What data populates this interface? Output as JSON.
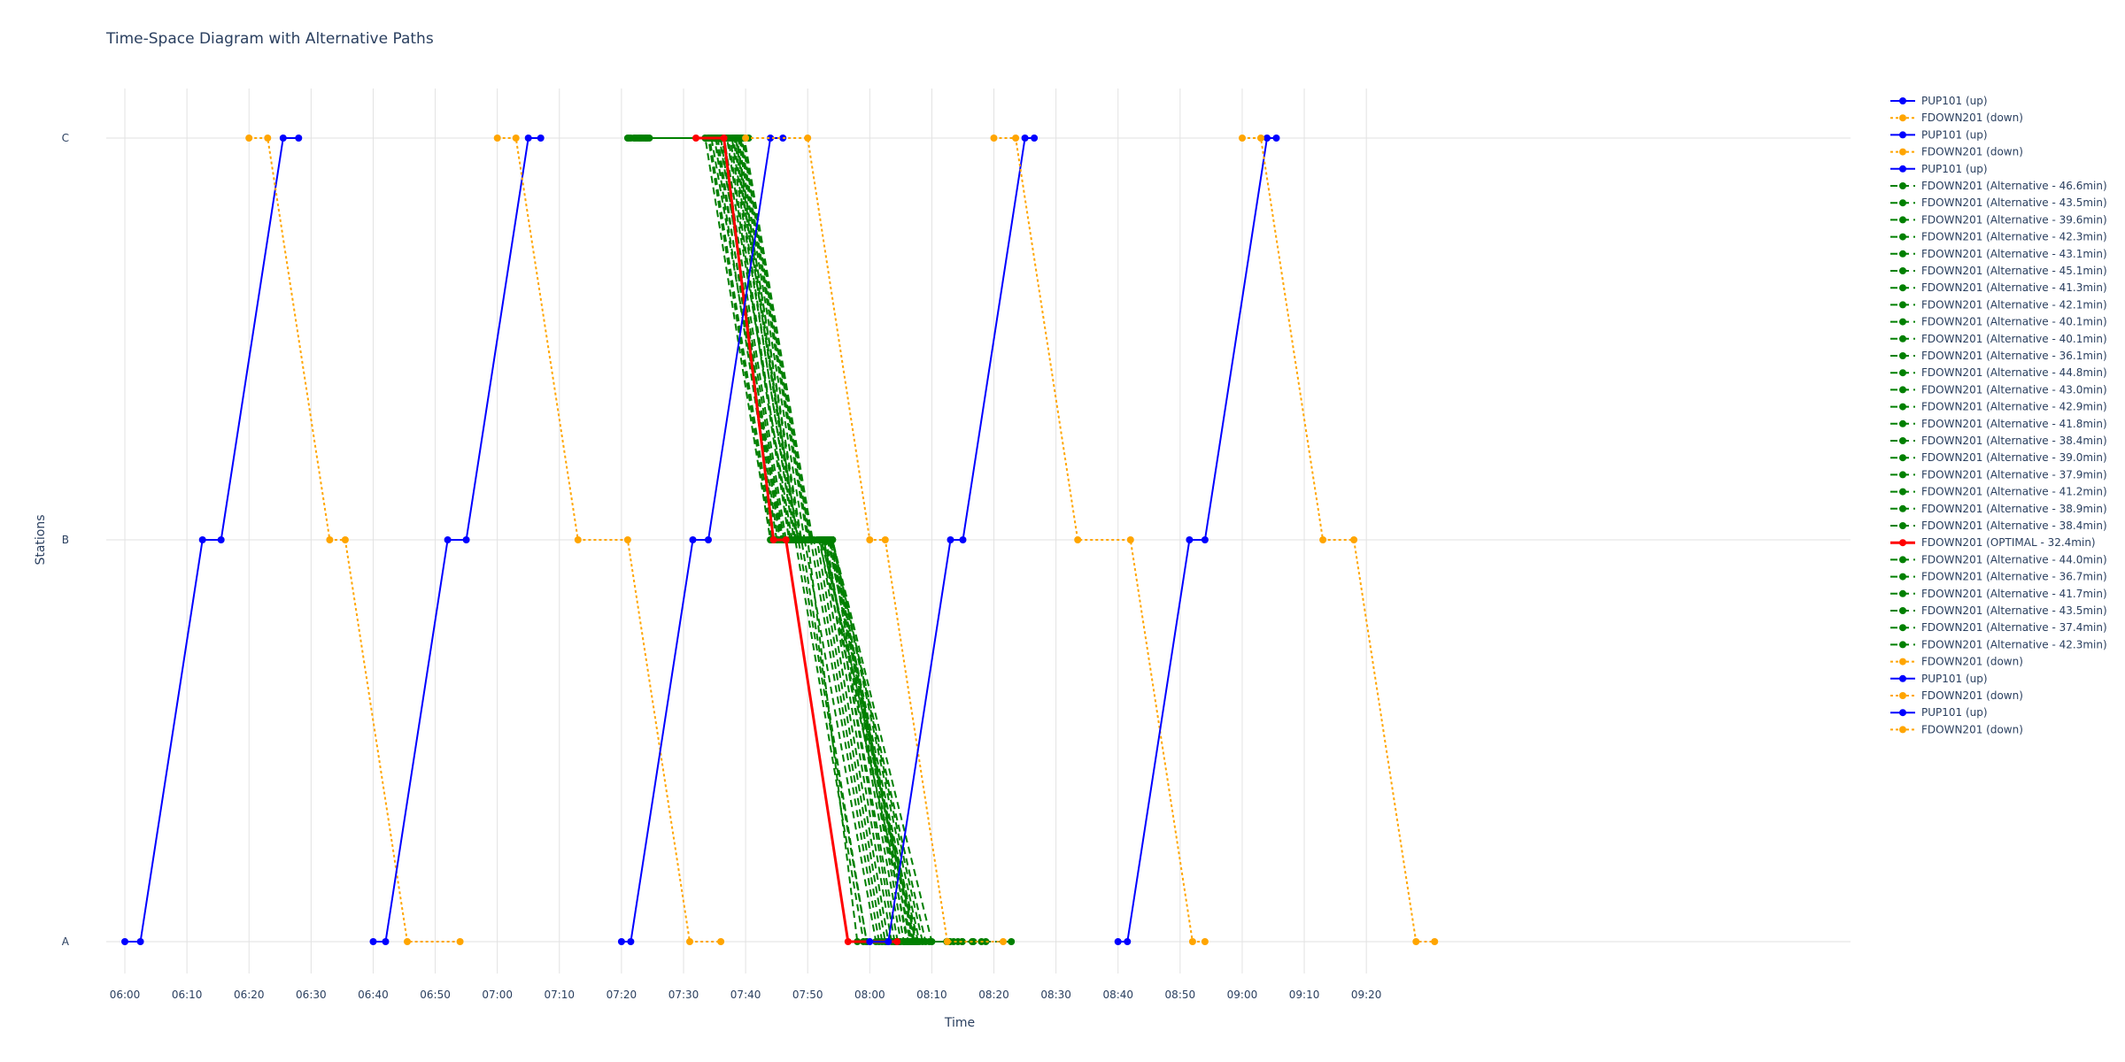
{
  "chart_data": {
    "type": "line",
    "title": "Time-Space Diagram with Alternative Paths",
    "xlabel": "Time",
    "ylabel": "Stations",
    "stations": [
      "A",
      "B",
      "C"
    ],
    "x_ticks": [
      "06:00",
      "06:10",
      "06:20",
      "06:30",
      "06:40",
      "06:50",
      "07:00",
      "07:10",
      "07:20",
      "07:30",
      "07:40",
      "07:50",
      "08:00",
      "08:10",
      "08:20",
      "08:30",
      "08:40",
      "08:50",
      "09:00",
      "09:10",
      "09:20"
    ],
    "xlim": [
      "05:57",
      "10:38"
    ],
    "grid": true,
    "legend_position": "right",
    "colors": {
      "up": "#0000ff",
      "down": "#ffa500",
      "alternative": "#008000",
      "optimal": "#ff0000"
    },
    "series": [
      {
        "name": "PUP101 (up)",
        "kind": "up",
        "points": [
          [
            "06:00",
            "A"
          ],
          [
            "06:02.5",
            "A"
          ],
          [
            "06:12.5",
            "B"
          ],
          [
            "06:15.5",
            "B"
          ],
          [
            "06:25.5",
            "C"
          ],
          [
            "06:28",
            "C"
          ]
        ]
      },
      {
        "name": "FDOWN201 (down)",
        "kind": "down",
        "points": [
          [
            "06:20",
            "C"
          ],
          [
            "06:23",
            "C"
          ],
          [
            "06:33",
            "B"
          ],
          [
            "06:35.5",
            "B"
          ],
          [
            "06:45.5",
            "A"
          ],
          [
            "06:54",
            "A"
          ]
        ]
      },
      {
        "name": "PUP101 (up)",
        "kind": "up",
        "points": [
          [
            "06:40",
            "A"
          ],
          [
            "06:42",
            "A"
          ],
          [
            "06:52",
            "B"
          ],
          [
            "06:55",
            "B"
          ],
          [
            "07:05",
            "C"
          ],
          [
            "07:07",
            "C"
          ]
        ]
      },
      {
        "name": "FDOWN201 (down)",
        "kind": "down",
        "points": [
          [
            "07:00",
            "C"
          ],
          [
            "07:03",
            "C"
          ],
          [
            "07:13",
            "B"
          ],
          [
            "07:21",
            "B"
          ],
          [
            "07:31",
            "A"
          ],
          [
            "07:36",
            "A"
          ]
        ]
      },
      {
        "name": "PUP101 (up)",
        "kind": "up",
        "points": [
          [
            "07:20",
            "A"
          ],
          [
            "07:21.5",
            "A"
          ],
          [
            "07:31.5",
            "B"
          ],
          [
            "07:34",
            "B"
          ],
          [
            "07:44",
            "C"
          ],
          [
            "07:46",
            "C"
          ]
        ]
      },
      {
        "name": "FDOWN201 (Alternative - 46.6min)",
        "kind": "alt",
        "points": [
          [
            "07:21",
            "C"
          ],
          [
            "07:36.6",
            "C"
          ],
          [
            "07:44.6",
            "B"
          ],
          [
            "07:50",
            "B"
          ],
          [
            "07:58",
            "A"
          ],
          [
            "08:07.6",
            "A"
          ]
        ]
      },
      {
        "name": "FDOWN201 (Alternative - 43.5min)",
        "kind": "alt",
        "points": [
          [
            "07:22",
            "C"
          ],
          [
            "07:34",
            "C"
          ],
          [
            "07:44.2",
            "B"
          ],
          [
            "07:48",
            "B"
          ],
          [
            "07:59",
            "A"
          ],
          [
            "08:05.5",
            "A"
          ]
        ]
      },
      {
        "name": "FDOWN201 (Alternative - 39.6min)",
        "kind": "alt",
        "points": [
          [
            "07:23",
            "C"
          ],
          [
            "07:33.5",
            "C"
          ],
          [
            "07:44",
            "B"
          ],
          [
            "07:49",
            "B"
          ],
          [
            "07:59.5",
            "A"
          ],
          [
            "08:02.6",
            "A"
          ]
        ]
      },
      {
        "name": "FDOWN201 (Alternative - 42.3min)",
        "kind": "alt",
        "points": [
          [
            "07:21.5",
            "C"
          ],
          [
            "07:35",
            "C"
          ],
          [
            "07:45",
            "B"
          ],
          [
            "07:49.5",
            "B"
          ],
          [
            "08:01",
            "A"
          ],
          [
            "08:03.8",
            "A"
          ]
        ]
      },
      {
        "name": "FDOWN201 (Alternative - 43.1min)",
        "kind": "alt",
        "points": [
          [
            "07:22.5",
            "C"
          ],
          [
            "07:35.5",
            "C"
          ],
          [
            "07:45.2",
            "B"
          ],
          [
            "07:50.5",
            "B"
          ],
          [
            "08:01.5",
            "A"
          ],
          [
            "08:05.6",
            "A"
          ]
        ]
      },
      {
        "name": "FDOWN201 (Alternative - 45.1min)",
        "kind": "alt",
        "points": [
          [
            "07:21.2",
            "C"
          ],
          [
            "07:36",
            "C"
          ],
          [
            "07:45.5",
            "B"
          ],
          [
            "07:51",
            "B"
          ],
          [
            "08:02",
            "A"
          ],
          [
            "08:06.3",
            "A"
          ]
        ]
      },
      {
        "name": "FDOWN201 (Alternative - 41.3min)",
        "kind": "alt",
        "points": [
          [
            "07:23.5",
            "C"
          ],
          [
            "07:34.5",
            "C"
          ],
          [
            "07:45.8",
            "B"
          ],
          [
            "07:51.5",
            "B"
          ],
          [
            "08:02.5",
            "A"
          ],
          [
            "08:04.8",
            "A"
          ]
        ]
      },
      {
        "name": "FDOWN201 (Alternative - 42.1min)",
        "kind": "alt",
        "points": [
          [
            "07:22.2",
            "C"
          ],
          [
            "07:35.2",
            "C"
          ],
          [
            "07:46",
            "B"
          ],
          [
            "07:52",
            "B"
          ],
          [
            "08:03",
            "A"
          ],
          [
            "08:04.3",
            "A"
          ]
        ]
      },
      {
        "name": "FDOWN201 (Alternative - 40.1min)",
        "kind": "alt",
        "points": [
          [
            "07:24",
            "C"
          ],
          [
            "07:34.2",
            "C"
          ],
          [
            "07:44.5",
            "B"
          ],
          [
            "07:52.5",
            "B"
          ],
          [
            "08:03.5",
            "A"
          ],
          [
            "08:04.1",
            "A"
          ]
        ]
      },
      {
        "name": "FDOWN201 (Alternative - 40.1min)",
        "kind": "alt",
        "points": [
          [
            "07:24.5",
            "C"
          ],
          [
            "07:36.2",
            "C"
          ],
          [
            "07:46.5",
            "B"
          ],
          [
            "07:53",
            "B"
          ],
          [
            "08:04",
            "A"
          ],
          [
            "08:04.6",
            "A"
          ]
        ]
      },
      {
        "name": "FDOWN201 (Alternative - 36.1min)",
        "kind": "alt",
        "points": [
          [
            "07:33.5",
            "C"
          ],
          [
            "07:35.8",
            "C"
          ],
          [
            "07:46.2",
            "B"
          ],
          [
            "07:48.5",
            "B"
          ],
          [
            "07:59.5",
            "A"
          ],
          [
            "08:09.6",
            "A"
          ]
        ]
      },
      {
        "name": "FDOWN201 (Alternative - 44.8min)",
        "kind": "alt",
        "points": [
          [
            "07:22.8",
            "C"
          ],
          [
            "07:37",
            "C"
          ],
          [
            "07:47",
            "B"
          ],
          [
            "07:52.8",
            "B"
          ],
          [
            "08:04.5",
            "A"
          ],
          [
            "08:07.6",
            "A"
          ]
        ]
      },
      {
        "name": "FDOWN201 (Alternative - 43.0min)",
        "kind": "alt",
        "points": [
          [
            "07:23.2",
            "C"
          ],
          [
            "07:36.5",
            "C"
          ],
          [
            "07:47.5",
            "B"
          ],
          [
            "07:53.5",
            "B"
          ],
          [
            "08:05",
            "A"
          ],
          [
            "08:06.2",
            "A"
          ]
        ]
      },
      {
        "name": "FDOWN201 (Alternative - 42.9min)",
        "kind": "alt",
        "points": [
          [
            "07:23.8",
            "C"
          ],
          [
            "07:37.5",
            "C"
          ],
          [
            "07:48",
            "B"
          ],
          [
            "07:53.8",
            "B"
          ],
          [
            "08:05.5",
            "A"
          ],
          [
            "08:06.7",
            "A"
          ]
        ]
      },
      {
        "name": "FDOWN201 (Alternative - 41.8min)",
        "kind": "alt",
        "points": [
          [
            "07:24.2",
            "C"
          ],
          [
            "07:38",
            "C"
          ],
          [
            "07:48.5",
            "B"
          ],
          [
            "07:54",
            "B"
          ],
          [
            "08:06",
            "A"
          ],
          [
            "08:06",
            "A"
          ]
        ]
      },
      {
        "name": "FDOWN201 (Alternative - 38.4min)",
        "kind": "alt",
        "points": [
          [
            "07:34",
            "C"
          ],
          [
            "07:38.5",
            "C"
          ],
          [
            "07:49",
            "B"
          ],
          [
            "07:54",
            "B"
          ],
          [
            "08:06.5",
            "A"
          ],
          [
            "08:12.4",
            "A"
          ]
        ]
      },
      {
        "name": "FDOWN201 (Alternative - 39.0min)",
        "kind": "alt",
        "points": [
          [
            "07:34.5",
            "C"
          ],
          [
            "07:37.2",
            "C"
          ],
          [
            "07:47.2",
            "B"
          ],
          [
            "07:53.2",
            "B"
          ],
          [
            "08:07",
            "A"
          ],
          [
            "08:13.5",
            "A"
          ]
        ]
      },
      {
        "name": "FDOWN201 (Alternative - 37.9min)",
        "kind": "alt",
        "points": [
          [
            "07:35",
            "C"
          ],
          [
            "07:38.8",
            "C"
          ],
          [
            "07:49.5",
            "B"
          ],
          [
            "07:53.6",
            "B"
          ],
          [
            "08:07.5",
            "A"
          ],
          [
            "08:12.9",
            "A"
          ]
        ]
      },
      {
        "name": "FDOWN201 (Alternative - 41.2min)",
        "kind": "alt",
        "points": [
          [
            "07:35.5",
            "C"
          ],
          [
            "07:39",
            "C"
          ],
          [
            "07:50",
            "B"
          ],
          [
            "07:54",
            "B"
          ],
          [
            "08:08",
            "A"
          ],
          [
            "08:16.7",
            "A"
          ]
        ]
      },
      {
        "name": "FDOWN201 (Alternative - 38.9min)",
        "kind": "alt",
        "points": [
          [
            "07:36",
            "C"
          ],
          [
            "07:38.2",
            "C"
          ],
          [
            "07:48.2",
            "B"
          ],
          [
            "07:52.2",
            "B"
          ],
          [
            "08:07.8",
            "A"
          ],
          [
            "08:14.9",
            "A"
          ]
        ]
      },
      {
        "name": "FDOWN201 (Alternative - 38.4min)",
        "kind": "alt",
        "points": [
          [
            "07:36.5",
            "C"
          ],
          [
            "07:37.8",
            "C"
          ],
          [
            "07:47.8",
            "B"
          ],
          [
            "07:51.8",
            "B"
          ],
          [
            "08:06.8",
            "A"
          ],
          [
            "08:14.9",
            "A"
          ]
        ]
      },
      {
        "name": "FDOWN201 (OPTIMAL - 32.4min)",
        "kind": "optimal",
        "points": [
          [
            "07:32",
            "C"
          ],
          [
            "07:36.5",
            "C"
          ],
          [
            "07:44.5",
            "B"
          ],
          [
            "07:46.5",
            "B"
          ],
          [
            "07:56.5",
            "A"
          ],
          [
            "08:04.4",
            "A"
          ]
        ]
      },
      {
        "name": "FDOWN201 (Alternative - 44.0min)",
        "kind": "alt",
        "points": [
          [
            "07:34",
            "C"
          ],
          [
            "07:39.2",
            "C"
          ],
          [
            "07:50.2",
            "B"
          ],
          [
            "07:53.4",
            "B"
          ],
          [
            "08:07.2",
            "A"
          ],
          [
            "08:18",
            "A"
          ]
        ]
      },
      {
        "name": "FDOWN201 (Alternative - 36.7min)",
        "kind": "alt",
        "points": [
          [
            "07:36.2",
            "C"
          ],
          [
            "07:38.6",
            "C"
          ],
          [
            "07:48.8",
            "B"
          ],
          [
            "07:52.6",
            "B"
          ],
          [
            "08:06.2",
            "A"
          ],
          [
            "08:12.9",
            "A"
          ]
        ]
      },
      {
        "name": "FDOWN201 (Alternative - 41.7min)",
        "kind": "alt",
        "points": [
          [
            "07:34.8",
            "C"
          ],
          [
            "07:39.4",
            "C"
          ],
          [
            "07:50.4",
            "B"
          ],
          [
            "07:54",
            "B"
          ],
          [
            "08:08.5",
            "A"
          ],
          [
            "08:16.5",
            "A"
          ]
        ]
      },
      {
        "name": "FDOWN201 (Alternative - 43.5min)",
        "kind": "alt",
        "points": [
          [
            "07:35.2",
            "C"
          ],
          [
            "07:39.6",
            "C"
          ],
          [
            "07:50.6",
            "B"
          ],
          [
            "07:53.9",
            "B"
          ],
          [
            "08:09",
            "A"
          ],
          [
            "08:18.7",
            "A"
          ]
        ]
      },
      {
        "name": "FDOWN201 (Alternative - 37.4min)",
        "kind": "alt",
        "points": [
          [
            "07:36.8",
            "C"
          ],
          [
            "07:38.4",
            "C"
          ],
          [
            "07:48.4",
            "B"
          ],
          [
            "07:52.4",
            "B"
          ],
          [
            "08:07.4",
            "A"
          ],
          [
            "08:14.2",
            "A"
          ]
        ]
      },
      {
        "name": "FDOWN201 (Alternative - 42.3min)",
        "kind": "alt",
        "points": [
          [
            "07:40.5",
            "C"
          ],
          [
            "07:39.8",
            "C"
          ],
          [
            "07:50.8",
            "B"
          ],
          [
            "07:54",
            "B"
          ],
          [
            "08:10",
            "A"
          ],
          [
            "08:22.8",
            "A"
          ]
        ]
      },
      {
        "name": "FDOWN201 (down)",
        "kind": "down",
        "points": [
          [
            "07:40",
            "C"
          ],
          [
            "07:50",
            "C"
          ],
          [
            "08:00",
            "B"
          ],
          [
            "08:02.5",
            "B"
          ],
          [
            "08:12.5",
            "A"
          ],
          [
            "08:21.5",
            "A"
          ]
        ]
      },
      {
        "name": "PUP101 (up)",
        "kind": "up",
        "points": [
          [
            "08:00",
            "A"
          ],
          [
            "08:03",
            "A"
          ],
          [
            "08:13",
            "B"
          ],
          [
            "08:15",
            "B"
          ],
          [
            "08:25",
            "C"
          ],
          [
            "08:26.5",
            "C"
          ]
        ]
      },
      {
        "name": "FDOWN201 (down)",
        "kind": "down",
        "points": [
          [
            "08:20",
            "C"
          ],
          [
            "08:23.5",
            "C"
          ],
          [
            "08:33.5",
            "B"
          ],
          [
            "08:42",
            "B"
          ],
          [
            "08:52",
            "A"
          ],
          [
            "08:54",
            "A"
          ]
        ]
      },
      {
        "name": "PUP101 (up)",
        "kind": "up",
        "points": [
          [
            "08:40",
            "A"
          ],
          [
            "08:41.5",
            "A"
          ],
          [
            "08:51.5",
            "B"
          ],
          [
            "08:54",
            "B"
          ],
          [
            "09:04",
            "C"
          ],
          [
            "09:05.5",
            "C"
          ]
        ]
      },
      {
        "name": "FDOWN201 (down)",
        "kind": "down",
        "points": [
          [
            "09:00",
            "C"
          ],
          [
            "09:03",
            "C"
          ],
          [
            "09:13",
            "B"
          ],
          [
            "09:18",
            "B"
          ],
          [
            "09:28",
            "A"
          ],
          [
            "09:31",
            "A"
          ]
        ]
      }
    ]
  }
}
